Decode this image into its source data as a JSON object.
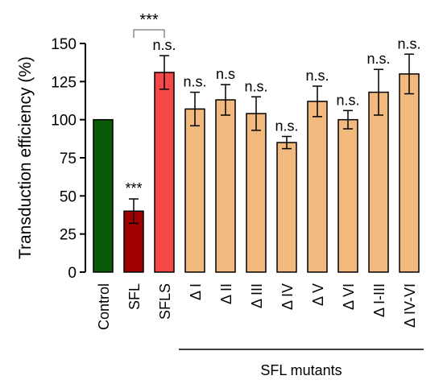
{
  "chart_data": {
    "type": "bar",
    "ylabel": "Transduction efficiency (%)",
    "ylim": [
      0,
      150
    ],
    "yticks": [
      0,
      25,
      50,
      75,
      100,
      125,
      150
    ],
    "categories": [
      "Control",
      "SFL",
      "SFLS",
      "Δ I",
      "Δ II",
      "Δ III",
      "Δ IV",
      "Δ V",
      "Δ VI",
      "Δ I-III",
      "Δ IV-VI"
    ],
    "values": [
      100,
      40,
      131,
      107,
      113,
      104,
      85,
      112,
      100,
      118,
      130
    ],
    "errors": [
      0,
      8,
      11,
      11,
      10,
      11,
      4,
      10,
      6,
      15,
      13
    ],
    "annotations": [
      "",
      "***",
      "n.s.",
      "n.s.",
      "n.s",
      "n.s.",
      "n.s.",
      "n.s.",
      "n.s.",
      "n.s.",
      "n.s."
    ],
    "colors": [
      "#0a5a0a",
      "#a00000",
      "#f54848",
      "#f2b97f",
      "#f2b97f",
      "#f2b97f",
      "#f2b97f",
      "#f2b97f",
      "#f2b97f",
      "#f2b97f",
      "#f2b97f"
    ],
    "comparison": {
      "from": "SFL",
      "to": "SFLS",
      "label": "***"
    },
    "group": {
      "label": "SFL mutants",
      "from": "Δ I",
      "to": "Δ IV-VI"
    }
  }
}
